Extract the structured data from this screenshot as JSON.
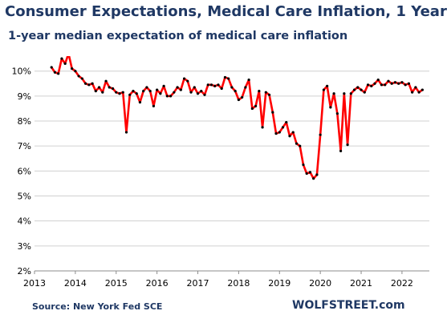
{
  "chart_data": {
    "type": "line",
    "title": "Consumer Expectations, Medical Care Inflation, 1 Year",
    "subtitle": "1-year median expectation of medical care inflation",
    "xlabel": "",
    "ylabel": "",
    "ylim": [
      2,
      10.6
    ],
    "xlim": [
      2013,
      2022.67
    ],
    "y_ticks": [
      "2%",
      "3%",
      "4%",
      "5%",
      "6%",
      "7%",
      "8%",
      "9%",
      "10%"
    ],
    "x_ticks": [
      "2013",
      "2014",
      "2015",
      "2016",
      "2017",
      "2018",
      "2019",
      "2020",
      "2021",
      "2022"
    ],
    "grid": "horizontal",
    "line_color": "#ff0000",
    "marker_color": "#000000",
    "x_start": "2013-06",
    "frequency": "monthly",
    "values": [
      10.15,
      9.95,
      9.9,
      10.5,
      10.3,
      10.7,
      10.1,
      10.0,
      9.8,
      9.7,
      9.5,
      9.45,
      9.5,
      9.2,
      9.35,
      9.15,
      9.6,
      9.35,
      9.3,
      9.15,
      9.1,
      9.15,
      7.55,
      9.05,
      9.2,
      9.1,
      8.75,
      9.2,
      9.35,
      9.2,
      8.6,
      9.25,
      9.1,
      9.4,
      9.0,
      9.0,
      9.15,
      9.35,
      9.25,
      9.7,
      9.6,
      9.15,
      9.35,
      9.1,
      9.2,
      9.05,
      9.45,
      9.45,
      9.4,
      9.45,
      9.3,
      9.75,
      9.7,
      9.35,
      9.2,
      8.85,
      8.95,
      9.35,
      9.65,
      8.5,
      8.6,
      9.2,
      7.75,
      9.15,
      9.05,
      8.35,
      7.5,
      7.55,
      7.75,
      7.95,
      7.4,
      7.55,
      7.1,
      7.0,
      6.25,
      5.9,
      5.95,
      5.7,
      5.85,
      7.45,
      9.25,
      9.4,
      8.55,
      9.1,
      8.3,
      6.8,
      9.1,
      7.05,
      9.1,
      9.25,
      9.35,
      9.25,
      9.15,
      9.45,
      9.4,
      9.5,
      9.65,
      9.45,
      9.45,
      9.6,
      9.5,
      9.55,
      9.5,
      9.55,
      9.45,
      9.5,
      9.15,
      9.35,
      9.15,
      9.25
    ]
  },
  "source": "Source: New York Fed SCE",
  "brand": "WOLFSTREET.com"
}
